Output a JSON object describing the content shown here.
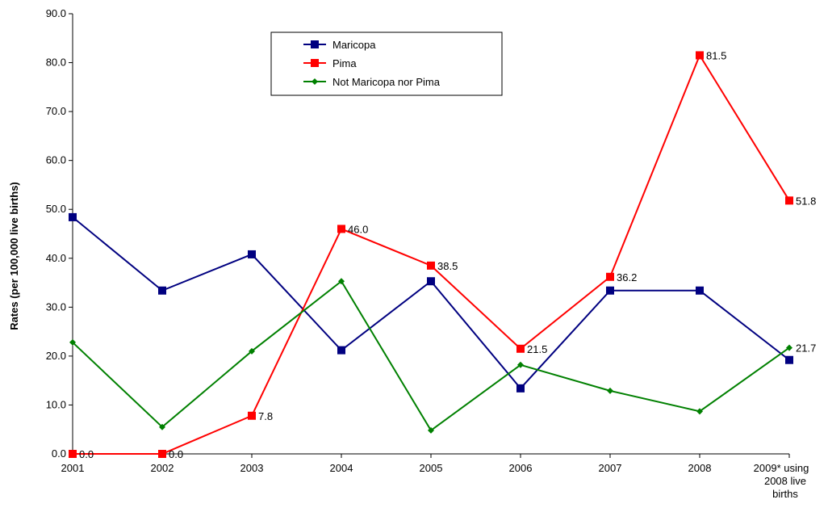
{
  "chart_data": {
    "type": "line",
    "title": "",
    "xlabel": "",
    "ylabel": "Rates (per 100,000 live births)",
    "ylim": [
      0,
      90
    ],
    "yticks": [
      "0.0",
      "10.0",
      "20.0",
      "30.0",
      "40.0",
      "50.0",
      "60.0",
      "70.0",
      "80.0",
      "90.0"
    ],
    "categories": [
      "2001",
      "2002",
      "2003",
      "2004",
      "2005",
      "2006",
      "2007",
      "2008",
      "2009* using 2008 live births"
    ],
    "series": [
      {
        "name": "Maricopa",
        "color": "#000080",
        "marker": "square",
        "values": [
          48.4,
          33.4,
          40.8,
          21.2,
          35.3,
          13.4,
          33.4,
          33.4,
          19.2
        ],
        "labels": [
          "",
          "",
          "",
          "",
          "",
          "",
          "",
          "",
          ""
        ]
      },
      {
        "name": "Pima",
        "color": "#ff0000",
        "marker": "square",
        "values": [
          0.0,
          0.0,
          7.8,
          46.0,
          38.5,
          21.5,
          36.2,
          81.5,
          51.8
        ],
        "labels": [
          "0.0",
          "0.0",
          "7.8",
          "46.0",
          "38.5",
          "21.5",
          "36.2",
          "81.5",
          "51.8"
        ]
      },
      {
        "name": "Not Maricopa nor Pima",
        "color": "#008000",
        "marker": "diamond",
        "values": [
          22.8,
          5.5,
          21.0,
          35.3,
          4.8,
          18.2,
          12.9,
          8.7,
          21.7
        ],
        "labels": [
          "",
          "",
          "",
          "",
          "",
          "",
          "",
          "",
          "21.7"
        ]
      }
    ],
    "grid": false,
    "legend": "top-center"
  }
}
